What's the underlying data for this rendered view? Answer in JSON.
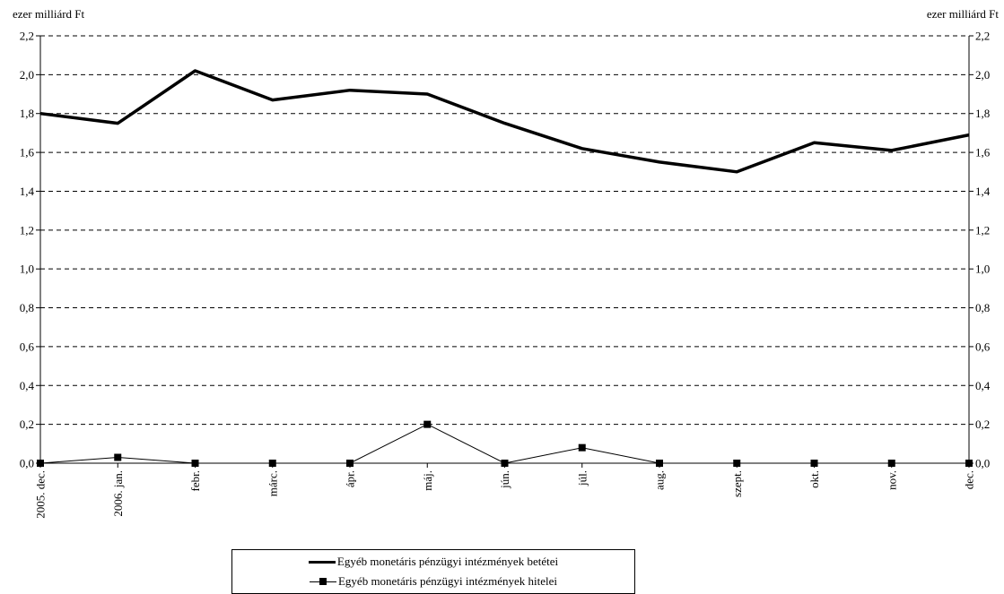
{
  "chart_data": {
    "type": "line",
    "title": "",
    "ylabel_left": "ezer milliárd Ft",
    "ylabel_right": "ezer milliárd Ft",
    "categories": [
      "2005. dec.",
      "2006. jan.",
      "febr.",
      "márc.",
      "ápr.",
      "máj.",
      "jún.",
      "júl.",
      "aug.",
      "szept.",
      "okt.",
      "nov.",
      "dec."
    ],
    "ylim": [
      0,
      2.2
    ],
    "yticks": [
      "0,0",
      "0,2",
      "0,4",
      "0,6",
      "0,8",
      "1,0",
      "1,2",
      "1,4",
      "1,6",
      "1,8",
      "2,0",
      "2,2"
    ],
    "grid": "horizontal dashed",
    "legend_position": "bottom",
    "series": [
      {
        "name": "Egyéb monetáris pénzügyi  intézmények betétei",
        "style": "thick line, no markers",
        "color": "#000000",
        "values": [
          1.8,
          1.75,
          2.02,
          1.87,
          1.92,
          1.9,
          1.75,
          1.62,
          1.55,
          1.5,
          1.65,
          1.61,
          1.69
        ]
      },
      {
        "name": "Egyéb monetáris pénzügyi intézmények hitelei",
        "style": "thin line, square markers",
        "color": "#000000",
        "values": [
          0.0,
          0.03,
          0.0,
          0.0,
          0.0,
          0.2,
          0.0,
          0.08,
          0.0,
          0.0,
          0.0,
          0.0,
          0.0
        ]
      }
    ]
  }
}
